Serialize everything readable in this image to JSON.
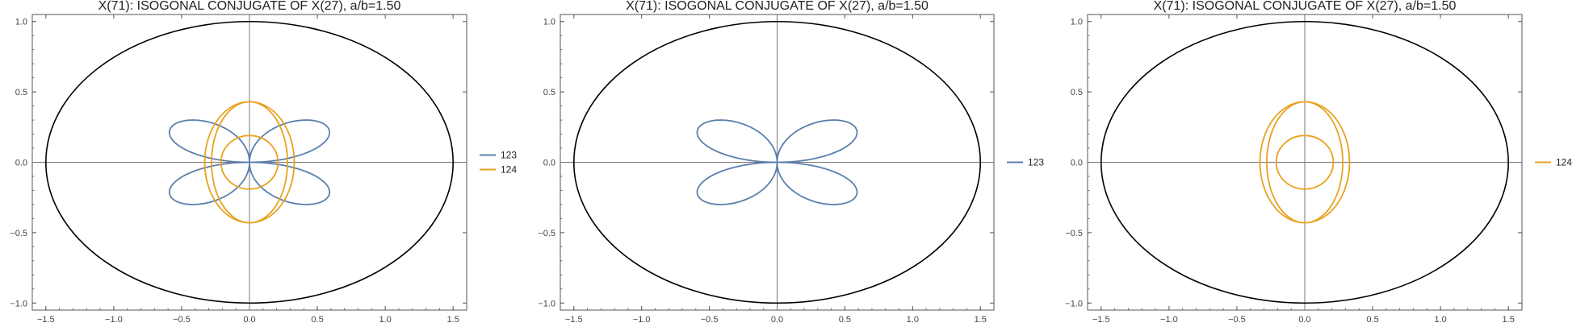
{
  "colors": {
    "blue": "#5b7fae",
    "orange": "#e8a21f",
    "ellipse": "#000000",
    "axis": "#777777",
    "frame": "#555555"
  },
  "chart_data": [
    {
      "type": "line",
      "title": "X(71): ISOGONAL CONJUGATE OF X(27), a/b=1.50",
      "xlim": [
        -1.6,
        1.6
      ],
      "ylim": [
        -1.05,
        1.05
      ],
      "xticks": [
        -1.5,
        -1.0,
        -0.5,
        0.0,
        0.5,
        1.0,
        1.5
      ],
      "xtick_labels": [
        "−1.5",
        "−1.0",
        "−0.5",
        "0.0",
        "0.5",
        "1.0",
        "1.5"
      ],
      "yticks": [
        1.0,
        0.5,
        0.0,
        -0.5,
        -1.0
      ],
      "ytick_labels": [
        "1.0",
        "0.5",
        "0.0",
        "−0.5",
        "−1.0"
      ],
      "ellipse": {
        "a": 1.5,
        "b": 1.0
      },
      "grid": false,
      "legend_position": "right",
      "series": [
        {
          "name": "123",
          "color": "#5b7fae",
          "shape": "four-lobe-rose",
          "x_extent": 0.59,
          "y_extent": 0.3
        },
        {
          "name": "124",
          "color": "#e8a21f",
          "shape": "nested-ovals",
          "half_widths": [
            0.33,
            0.28,
            0.21
          ],
          "half_heights": [
            0.43,
            0.43,
            0.19
          ]
        }
      ]
    },
    {
      "type": "line",
      "title": "X(71): ISOGONAL CONJUGATE OF X(27), a/b=1.50",
      "xlim": [
        -1.6,
        1.6
      ],
      "ylim": [
        -1.05,
        1.05
      ],
      "xticks": [
        -1.5,
        -1.0,
        -0.5,
        0.0,
        0.5,
        1.0,
        1.5
      ],
      "xtick_labels": [
        "−1.5",
        "−1.0",
        "−0.5",
        "0.0",
        "0.5",
        "1.0",
        "1.5"
      ],
      "yticks": [
        1.0,
        0.5,
        0.0,
        -0.5,
        -1.0
      ],
      "ytick_labels": [
        "1.0",
        "0.5",
        "0.0",
        "−0.5",
        "−1.0"
      ],
      "ellipse": {
        "a": 1.5,
        "b": 1.0
      },
      "grid": false,
      "legend_position": "right",
      "series": [
        {
          "name": "123",
          "color": "#5b7fae",
          "shape": "four-lobe-rose",
          "x_extent": 0.59,
          "y_extent": 0.3
        }
      ]
    },
    {
      "type": "line",
      "title": "X(71): ISOGONAL CONJUGATE OF X(27), a/b=1.50",
      "xlim": [
        -1.6,
        1.6
      ],
      "ylim": [
        -1.05,
        1.05
      ],
      "xticks": [
        -1.5,
        -1.0,
        -0.5,
        0.0,
        0.5,
        1.0,
        1.5
      ],
      "xtick_labels": [
        "−1.5",
        "−1.0",
        "−0.5",
        "0.0",
        "0.5",
        "1.0",
        "1.5"
      ],
      "yticks": [
        1.0,
        0.5,
        0.0,
        -0.5,
        -1.0
      ],
      "ytick_labels": [
        "1.0",
        "0.5",
        "0.0",
        "−0.5",
        "−1.0"
      ],
      "ellipse": {
        "a": 1.5,
        "b": 1.0
      },
      "grid": false,
      "legend_position": "right",
      "series": [
        {
          "name": "124",
          "color": "#e8a21f",
          "shape": "nested-ovals",
          "half_widths": [
            0.33,
            0.28,
            0.21
          ],
          "half_heights": [
            0.43,
            0.43,
            0.19
          ]
        }
      ]
    }
  ]
}
